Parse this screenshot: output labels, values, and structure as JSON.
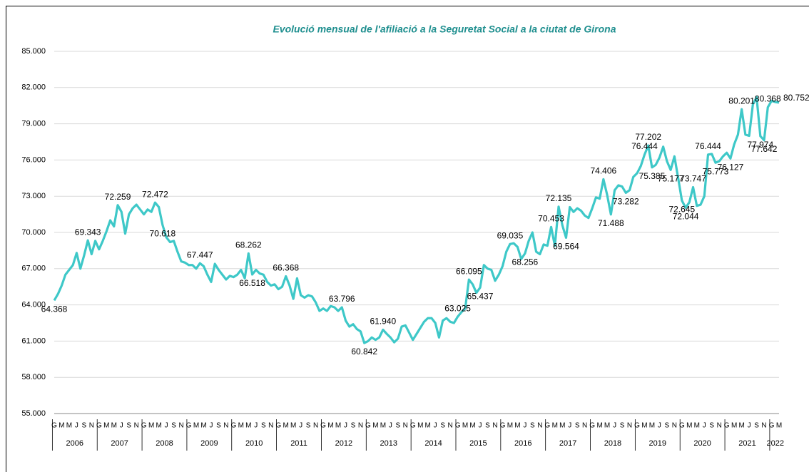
{
  "chart_data": {
    "type": "line",
    "title": "Evolució mensual de l'afiliació a la Seguretat Social a la ciutat de Girona",
    "categories": [
      "G",
      null,
      "M",
      null,
      "M",
      null,
      "J",
      null,
      "S",
      null,
      "N",
      null,
      "G",
      null,
      "M",
      null,
      "M",
      null,
      "J",
      null,
      "S",
      null,
      "N",
      null,
      "G",
      null,
      "M",
      null,
      "M",
      null,
      "J",
      null,
      "S",
      null,
      "N",
      null,
      "G",
      null,
      "M",
      null,
      "M",
      null,
      "J",
      null,
      "S",
      null,
      "N",
      null,
      "G",
      null,
      "M",
      null,
      "M",
      null,
      "J",
      null,
      "S",
      null,
      "N",
      null,
      "G",
      null,
      "M",
      null,
      "M",
      null,
      "J",
      null,
      "S",
      null,
      "N",
      null,
      "G",
      null,
      "M",
      null,
      "M",
      null,
      "J",
      null,
      "S",
      null,
      "N",
      null,
      "G",
      null,
      "M",
      null,
      "M",
      null,
      "J",
      null,
      "S",
      null,
      "N",
      null,
      "G",
      null,
      "M",
      null,
      "M",
      null,
      "J",
      null,
      "S",
      null,
      "N",
      null,
      "G",
      null,
      "M",
      null,
      "M",
      null,
      "J",
      null,
      "S",
      null,
      "N",
      null,
      "G",
      null,
      "M",
      null,
      "M",
      null,
      "J",
      null,
      "S",
      null,
      "N",
      null,
      "G",
      null,
      "M",
      null,
      "M",
      null,
      "J",
      null,
      "S",
      null,
      "N",
      null,
      "G",
      null,
      "M",
      null,
      "M",
      null,
      "J",
      null,
      "S",
      null,
      "N",
      null,
      "G",
      null,
      "M",
      null,
      "M",
      null,
      "J",
      null,
      "S",
      null,
      "N",
      null,
      "G",
      null,
      "M",
      null,
      "M",
      null,
      "J",
      null,
      "S",
      null,
      "N",
      null,
      "G",
      null,
      "M",
      null,
      "M",
      null,
      "J",
      null,
      "S",
      null,
      "N",
      null,
      "G",
      null,
      "M"
    ],
    "years": [
      "2006",
      "2007",
      "2008",
      "2009",
      "2010",
      "2011",
      "2012",
      "2013",
      "2014",
      "2015",
      "2016",
      "2017",
      "2018",
      "2019",
      "2020",
      "2021",
      "2022"
    ],
    "values": [
      64368,
      64900,
      65600,
      66500,
      66900,
      67300,
      68300,
      67000,
      68100,
      69343,
      68200,
      69300,
      68600,
      69300,
      70100,
      71000,
      70500,
      72259,
      71700,
      69900,
      71500,
      72000,
      72300,
      71900,
      71500,
      71900,
      71700,
      72472,
      72100,
      70618,
      69600,
      69200,
      69300,
      68400,
      67600,
      67500,
      67300,
      67300,
      67000,
      67447,
      67200,
      66500,
      65900,
      67400,
      66900,
      66500,
      66100,
      66400,
      66300,
      66500,
      66900,
      66200,
      68262,
      66518,
      66900,
      66600,
      66500,
      65900,
      65600,
      65700,
      65300,
      65500,
      66368,
      65600,
      64500,
      66200,
      64800,
      64600,
      64800,
      64700,
      64200,
      63500,
      63700,
      63500,
      63900,
      63800,
      63500,
      63796,
      62700,
      62200,
      62400,
      62000,
      61800,
      60842,
      61000,
      61300,
      61100,
      61300,
      61940,
      61600,
      61300,
      60900,
      61200,
      62200,
      62300,
      61700,
      61100,
      61600,
      62100,
      62600,
      62900,
      62900,
      62500,
      61300,
      62700,
      62900,
      62600,
      62500,
      63025,
      63400,
      63700,
      66095,
      65700,
      65000,
      65437,
      67300,
      67000,
      66900,
      66000,
      66500,
      67200,
      68400,
      69035,
      69100,
      68800,
      67800,
      68256,
      69300,
      70000,
      68400,
      68200,
      69000,
      68900,
      70453,
      68900,
      72135,
      70600,
      69564,
      72100,
      71700,
      72000,
      71800,
      71400,
      71200,
      72000,
      72900,
      72800,
      74406,
      73100,
      71488,
      73500,
      73900,
      73800,
      73282,
      73500,
      74600,
      74900,
      75500,
      76444,
      77202,
      75385,
      75600,
      76200,
      77100,
      75900,
      75177,
      76300,
      74500,
      72645,
      72044,
      72500,
      73747,
      72200,
      72300,
      73000,
      76444,
      76500,
      75773,
      75900,
      76300,
      76600,
      76127,
      77300,
      78100,
      80201,
      78100,
      78000,
      80600,
      81200,
      77974,
      77642,
      80368,
      80900,
      80800,
      80752
    ],
    "value_labels": [
      "64.368",
      null,
      null,
      null,
      null,
      null,
      null,
      null,
      null,
      "69.343",
      null,
      null,
      null,
      null,
      null,
      null,
      null,
      "72.259",
      null,
      null,
      null,
      null,
      null,
      null,
      null,
      null,
      null,
      "72.472",
      null,
      "70.618",
      null,
      null,
      null,
      null,
      null,
      null,
      null,
      null,
      null,
      "67.447",
      null,
      null,
      null,
      null,
      null,
      null,
      null,
      null,
      null,
      null,
      null,
      null,
      "68.262",
      "66.518",
      null,
      null,
      null,
      null,
      null,
      null,
      null,
      null,
      "66.368",
      null,
      null,
      null,
      null,
      null,
      null,
      null,
      null,
      null,
      null,
      null,
      null,
      null,
      null,
      "63.796",
      null,
      null,
      null,
      null,
      null,
      "60.842",
      null,
      null,
      null,
      null,
      "61.940",
      null,
      null,
      null,
      null,
      null,
      null,
      null,
      null,
      null,
      null,
      null,
      null,
      null,
      null,
      null,
      null,
      null,
      null,
      null,
      "63.025",
      null,
      null,
      "66.095",
      null,
      null,
      "65.437",
      null,
      null,
      null,
      null,
      null,
      null,
      null,
      "69.035",
      null,
      null,
      null,
      "68.256",
      null,
      null,
      null,
      null,
      null,
      null,
      "70.453",
      null,
      "72.135",
      null,
      "69.564",
      null,
      null,
      null,
      null,
      null,
      null,
      null,
      null,
      null,
      "74.406",
      null,
      "71.488",
      null,
      null,
      null,
      "73.282",
      null,
      null,
      null,
      null,
      "76.444",
      "77.202",
      "75.385",
      null,
      null,
      null,
      null,
      "75.177",
      null,
      null,
      "72.645",
      "72.044",
      null,
      "73.747",
      null,
      null,
      null,
      "76.444",
      null,
      "75.773",
      null,
      null,
      null,
      "76.127",
      null,
      null,
      "80.201",
      null,
      null,
      null,
      null,
      "77.974",
      "77.642",
      "80.368",
      null,
      null,
      "80.752"
    ],
    "color": "#3ec8c8",
    "ylim": [
      55000,
      85000
    ],
    "yticks": [
      {
        "value": 55000,
        "label": "55.000"
      },
      {
        "value": 58000,
        "label": "58.000"
      },
      {
        "value": 61000,
        "label": "61.000"
      },
      {
        "value": 64000,
        "label": "64.000"
      },
      {
        "value": 67000,
        "label": "67.000"
      },
      {
        "value": 70000,
        "label": "70.000"
      },
      {
        "value": 73000,
        "label": "73.000"
      },
      {
        "value": 76000,
        "label": "76.000"
      },
      {
        "value": 79000,
        "label": "79.000"
      },
      {
        "value": 82000,
        "label": "82.000"
      },
      {
        "value": 85000,
        "label": "85.000"
      }
    ],
    "grid": true
  }
}
